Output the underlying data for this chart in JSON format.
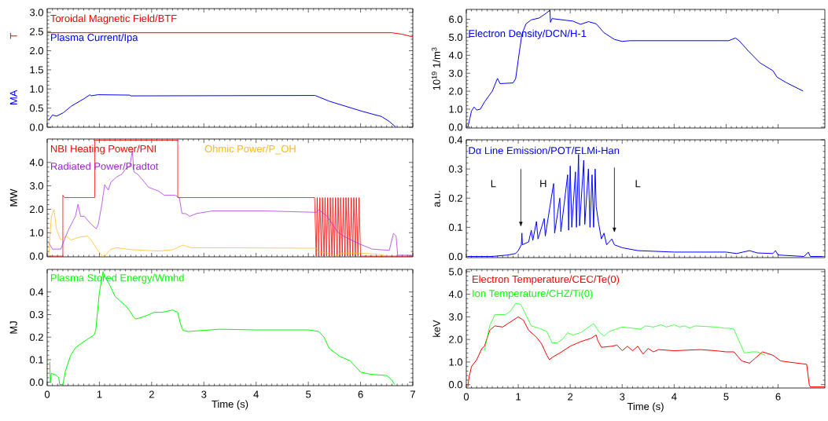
{
  "chart_data": [
    {
      "type": "line",
      "ylabel": "MA",
      "annotations": [
        "T"
      ],
      "xlim": [
        0,
        7
      ],
      "ylim": [
        0,
        3.1
      ],
      "tick_labels": "y",
      "xticks": [
        0,
        1,
        2,
        3,
        4,
        5,
        6,
        7
      ],
      "yticks": [
        {
          "value": 0,
          "label": "0.0"
        },
        {
          "value": 0.5,
          "label": "0.5"
        },
        {
          "value": 1,
          "label": "1.0"
        },
        {
          "value": 1.5,
          "label": "1.5"
        },
        {
          "value": 2,
          "label": "2.0"
        },
        {
          "value": 2.5,
          "label": "2.5"
        },
        {
          "value": 3,
          "label": "3.0"
        }
      ],
      "series": [
        {
          "name": "Toroidal Magnetic Field/BTF",
          "color": "#ff0000",
          "x": [
            0,
            1,
            2,
            3,
            4,
            5,
            6,
            6.6,
            6.8,
            7
          ],
          "values": [
            2.47,
            2.47,
            2.47,
            2.47,
            2.47,
            2.47,
            2.47,
            2.47,
            2.43,
            2.36
          ]
        },
        {
          "name": "Plasma Current/Ipa",
          "color": "#0000ff",
          "x": [
            0.03,
            0.1,
            0.18,
            0.31,
            0.46,
            0.71,
            0.82,
            0.84,
            0.97,
            1.58,
            1.6,
            5.13,
            5.4,
            5.71,
            6.02,
            6.4,
            6.55,
            6.67
          ],
          "values": [
            0.18,
            0.32,
            0.29,
            0.38,
            0.55,
            0.75,
            0.85,
            0.82,
            0.85,
            0.84,
            0.82,
            0.83,
            0.68,
            0.55,
            0.42,
            0.28,
            0.15,
            0.01
          ]
        }
      ]
    },
    {
      "type": "line",
      "ylabel": "10$^{19}$ 1/m$^{3}$",
      "xlim": [
        0,
        6.9
      ],
      "ylim": [
        -0.05,
        6.55
      ],
      "tick_labels": "y",
      "xticks": [
        0,
        1,
        2,
        3,
        4,
        5,
        6
      ],
      "yticks": [
        {
          "value": 0,
          "label": "0.0"
        },
        {
          "value": 1,
          "label": "1.0"
        },
        {
          "value": 2,
          "label": "2.0"
        },
        {
          "value": 3,
          "label": "3.0"
        },
        {
          "value": 4,
          "label": "4.0"
        },
        {
          "value": 5,
          "label": "5.0"
        },
        {
          "value": 6,
          "label": "6.0"
        }
      ],
      "series": [
        {
          "name": "Electron Density/DCN/H-1",
          "color": "#0000ff",
          "x": [
            0.03,
            0.07,
            0.1,
            0.15,
            0.2,
            0.27,
            0.35,
            0.5,
            0.6,
            0.65,
            0.9,
            0.95,
            1.02,
            1.07,
            1.15,
            1.25,
            1.4,
            1.5,
            1.61,
            1.62,
            1.65,
            2.05,
            2.2,
            2.35,
            2.5,
            2.65,
            2.85,
            3.0,
            3.15,
            5.05,
            5.18,
            5.25,
            5.43,
            5.65,
            5.9,
            5.98,
            6.15,
            6.48
          ],
          "values": [
            0,
            0.5,
            0.9,
            1.12,
            0.95,
            1.0,
            1.4,
            2.0,
            2.71,
            2.42,
            2.46,
            2.7,
            4.16,
            5.17,
            5.75,
            5.97,
            6.07,
            6.26,
            6.5,
            5.83,
            6.04,
            5.9,
            5.72,
            5.87,
            5.75,
            5.25,
            4.88,
            4.77,
            4.81,
            4.81,
            4.96,
            4.81,
            4.23,
            3.58,
            3.14,
            2.78,
            2.49,
            2.01
          ]
        }
      ]
    },
    {
      "type": "line",
      "ylabel": "MW",
      "xlim": [
        0,
        7
      ],
      "ylim": [
        -0.03,
        5
      ],
      "tick_labels": "y",
      "xticks": [
        0,
        1,
        2,
        3,
        4,
        5,
        6,
        7
      ],
      "yticks": [
        {
          "value": 0,
          "label": "0.0"
        },
        {
          "value": 1,
          "label": "1.0"
        },
        {
          "value": 2,
          "label": "2.0"
        },
        {
          "value": 3,
          "label": "3.0"
        },
        {
          "value": 4,
          "label": "4.0"
        }
      ],
      "series": [
        {
          "name": "NBI Heating Power/PNI",
          "color": "#ff0000",
          "x": [
            0.05,
            0.3,
            0.3,
            0.33,
            0.91,
            0.91,
            2.5,
            2.5,
            5.1,
            5.12,
            5.15,
            5.17,
            5.2,
            5.22,
            5.25,
            5.27,
            5.3,
            5.32,
            5.35,
            5.37,
            5.4,
            5.42,
            5.45,
            5.47,
            5.5,
            5.52,
            5.55,
            5.57,
            5.6,
            5.62,
            5.65,
            5.67,
            5.7,
            5.72,
            5.75,
            5.77,
            5.8,
            5.82,
            5.85,
            5.87,
            5.9,
            5.92,
            5.95,
            5.97,
            6.0,
            7
          ],
          "values": [
            0,
            0,
            2.6,
            2.5,
            2.5,
            4.95,
            4.95,
            2.5,
            2.5,
            2.5,
            0,
            2.5,
            0,
            2.5,
            0,
            2.5,
            0,
            2.5,
            0,
            2.5,
            0,
            2.5,
            0,
            2.5,
            0,
            2.5,
            0,
            2.5,
            0,
            2.5,
            0,
            2.5,
            0,
            2.5,
            0,
            2.5,
            0,
            2.5,
            0,
            2.5,
            0,
            2.5,
            0,
            2.5,
            0,
            0
          ]
        },
        {
          "name": "Radiated Power/Pradtot",
          "color": "#a020e0",
          "x": [
            0.03,
            0.1,
            0.26,
            0.41,
            0.54,
            0.59,
            0.64,
            0.71,
            0.84,
            0.94,
            0.98,
            1.05,
            1.1,
            1.17,
            1.22,
            1.33,
            1.43,
            1.5,
            1.58,
            1.63,
            1.66,
            1.73,
            1.84,
            1.94,
            2.14,
            2.24,
            2.45,
            2.53,
            2.58,
            2.65,
            2.73,
            2.86,
            3.16,
            4.18,
            5.15,
            5.2,
            5.36,
            5.56,
            5.71,
            5.97,
            6.22,
            6.55,
            6.63,
            6.68,
            6.71,
            7
          ],
          "values": [
            0.58,
            0.3,
            0.3,
            1.14,
            1.7,
            2.21,
            1.7,
            1.7,
            1.37,
            1.17,
            1.37,
            2.26,
            3.05,
            2.82,
            3.16,
            3.38,
            3.5,
            3.72,
            3.83,
            4.5,
            3.6,
            3.5,
            3.22,
            2.94,
            2.77,
            2.6,
            2.6,
            2.49,
            1.82,
            1.82,
            1.7,
            1.82,
            1.93,
            1.93,
            1.87,
            1.98,
            1.7,
            1.03,
            0.81,
            0.53,
            0.3,
            0.25,
            0.97,
            0.86,
            0.04,
            0.04
          ]
        },
        {
          "name": "Ohmic Power/P_OH",
          "color": "#ffb80f",
          "x": [
            0.03,
            0.08,
            0.13,
            0.18,
            0.26,
            0.36,
            0.46,
            0.61,
            0.77,
            0.84,
            0.97,
            1.05,
            1.1,
            1.22,
            1.33,
            1.63,
            2.14,
            2.4,
            2.6,
            2.76,
            5.15,
            5.2,
            5.36,
            5.51,
            5.66,
            6.02,
            6.33,
            6.53
          ],
          "values": [
            0.02,
            1.7,
            1.98,
            1.14,
            0.69,
            0.86,
            0.69,
            0.81,
            0.86,
            0.69,
            0.25,
            0,
            0,
            0.3,
            0.36,
            0.27,
            0.22,
            0.27,
            0.47,
            0.36,
            0.34,
            0.19,
            0.13,
            0.02,
            0.13,
            0.13,
            0.08,
            0
          ]
        }
      ]
    },
    {
      "type": "line",
      "ylabel": "a.u.",
      "xlim": [
        0,
        6.9
      ],
      "ylim": [
        -0.004,
        0.4
      ],
      "tick_labels": "y",
      "xticks": [
        0,
        1,
        2,
        3,
        4,
        5,
        6
      ],
      "yticks": [
        {
          "value": 0,
          "label": "0.0"
        },
        {
          "value": 0.1,
          "label": "0.1"
        },
        {
          "value": 0.2,
          "label": "0.2"
        },
        {
          "value": 0.3,
          "label": "0.3"
        },
        {
          "value": 0.4,
          "label": "0.4"
        }
      ],
      "annotations": [
        "L",
        "H",
        "L"
      ],
      "series": [
        {
          "name": "Dα Line Emission/POT/ELMi-Han",
          "color": "#0000ff",
          "x": [
            0.03,
            0.5,
            0.8,
            0.95,
            1.0,
            1.06,
            1.07,
            1.08,
            1.2,
            1.25,
            1.28,
            1.35,
            1.38,
            1.5,
            1.52,
            1.68,
            1.7,
            1.8,
            1.82,
            1.95,
            1.97,
            2.0,
            2.03,
            2.1,
            2.12,
            2.16,
            2.18,
            2.26,
            2.28,
            2.35,
            2.38,
            2.42,
            2.45,
            2.48,
            2.5,
            2.55,
            2.6,
            2.65,
            2.7,
            2.8,
            2.85,
            3.0,
            3.3,
            4.0,
            5.0,
            5.2,
            5.45,
            5.6,
            5.9,
            5.95,
            6.0,
            6.5,
            6.58,
            6.62,
            6.85
          ],
          "values": [
            0,
            0,
            0.005,
            0.01,
            0.02,
            0.04,
            0.08,
            0.04,
            0.05,
            0.09,
            0.055,
            0.12,
            0.06,
            0.13,
            0.07,
            0.25,
            0.08,
            0.2,
            0.085,
            0.28,
            0.09,
            0.31,
            0.1,
            0.29,
            0.1,
            0.35,
            0.105,
            0.33,
            0.11,
            0.3,
            0.1,
            0.28,
            0.1,
            0.3,
            0.17,
            0.11,
            0.06,
            0.08,
            0.04,
            0.06,
            0.04,
            0.03,
            0.02,
            0.015,
            0.015,
            0.01,
            0.02,
            0.012,
            0.01,
            0.02,
            0.005,
            0,
            0.015,
            0,
            0
          ]
        }
      ]
    },
    {
      "type": "line",
      "ylabel": "MJ",
      "xlabel": "Time (s)",
      "xlim": [
        0,
        7
      ],
      "ylim": [
        -0.015,
        0.5
      ],
      "xticks": [
        0,
        1,
        2,
        3,
        4,
        5,
        6,
        7
      ],
      "yticks": [
        {
          "value": 0,
          "label": "0.0"
        },
        {
          "value": 0.1,
          "label": "0.1"
        },
        {
          "value": 0.2,
          "label": "0.2"
        },
        {
          "value": 0.3,
          "label": "0.3"
        },
        {
          "value": 0.4,
          "label": "0.4"
        }
      ],
      "series": [
        {
          "name": "Plasma Stored Energy/Wmhd",
          "color": "#00ff00",
          "x": [
            0.05,
            0.06,
            0.08,
            0.18,
            0.22,
            0.24,
            0.3,
            0.35,
            0.45,
            0.55,
            0.7,
            0.9,
            0.93,
            1.0,
            1.07,
            1.1,
            1.2,
            1.3,
            1.4,
            1.5,
            1.6,
            1.65,
            1.7,
            1.9,
            2.05,
            2.2,
            2.4,
            2.5,
            2.55,
            2.6,
            2.7,
            3.0,
            3.3,
            4.0,
            5.0,
            5.2,
            5.3,
            5.4,
            5.6,
            5.8,
            5.9,
            6.0,
            6.2,
            6.5,
            6.6,
            6.65
          ],
          "values": [
            0.09,
            0,
            0.04,
            0.03,
            0.02,
            -0.01,
            -0.01,
            0.05,
            0.12,
            0.155,
            0.18,
            0.21,
            0.23,
            0.4,
            0.49,
            0.47,
            0.43,
            0.38,
            0.36,
            0.34,
            0.31,
            0.29,
            0.28,
            0.295,
            0.31,
            0.31,
            0.32,
            0.31,
            0.26,
            0.23,
            0.225,
            0.23,
            0.235,
            0.232,
            0.232,
            0.225,
            0.2,
            0.15,
            0.115,
            0.095,
            0.07,
            0.045,
            0.035,
            0.03,
            0.01,
            -0.01
          ]
        }
      ]
    },
    {
      "type": "line",
      "ylabel": "keV",
      "xlabel": "Time (s)",
      "xlim": [
        0,
        6.9
      ],
      "ylim": [
        -0.15,
        5.1
      ],
      "xticks": [
        0,
        1,
        2,
        3,
        4,
        5,
        6
      ],
      "yticks": [
        {
          "value": 0,
          "label": "0.0"
        },
        {
          "value": 1,
          "label": "1.0"
        },
        {
          "value": 2,
          "label": "2.0"
        },
        {
          "value": 3,
          "label": "3.0"
        },
        {
          "value": 4,
          "label": "4.0"
        },
        {
          "value": 5,
          "label": "5.0"
        }
      ],
      "series": [
        {
          "name": "Electron Temperature/CEC/Te(0)",
          "color": "#ff0000",
          "x": [
            0.03,
            0.05,
            0.1,
            0.2,
            0.3,
            0.35,
            0.45,
            0.55,
            0.7,
            0.8,
            1.0,
            1.1,
            1.2,
            1.35,
            1.45,
            1.55,
            1.6,
            1.65,
            1.8,
            2.0,
            2.2,
            2.4,
            2.5,
            2.53,
            2.6,
            2.8,
            2.9,
            3.0,
            3.1,
            3.2,
            3.3,
            3.4,
            3.5,
            3.6,
            3.7,
            4.0,
            4.5,
            4.8,
            5.0,
            5.15,
            5.3,
            5.45,
            5.55,
            5.7,
            5.9,
            6.05,
            6.2,
            6.55,
            6.6,
            6.62,
            6.9
          ],
          "values": [
            -0.1,
            0.3,
            0.8,
            1.1,
            1.6,
            1.7,
            2.4,
            2.6,
            2.55,
            2.7,
            3.0,
            2.85,
            2.4,
            2.1,
            1.8,
            1.3,
            1.1,
            1.2,
            1.4,
            1.7,
            1.9,
            2.05,
            2.2,
            1.95,
            1.65,
            1.7,
            1.75,
            1.5,
            1.7,
            1.5,
            1.7,
            1.35,
            1.6,
            1.45,
            1.55,
            1.5,
            1.55,
            1.5,
            1.45,
            1.45,
            1.05,
            0.95,
            1.15,
            1.45,
            1.3,
            1.05,
            1.0,
            0.9,
            0,
            -0.1,
            -0.1
          ]
        },
        {
          "name": "Ion Temperature/CHZ/Ti(0)",
          "color": "#00ff00",
          "x": [
            0.35,
            0.45,
            0.55,
            0.75,
            0.85,
            0.95,
            1.05,
            1.25,
            1.4,
            1.55,
            1.65,
            1.75,
            1.85,
            1.95,
            2.05,
            2.2,
            2.45,
            2.55,
            2.65,
            2.75,
            3.0,
            3.2,
            3.35,
            3.45,
            3.6,
            3.75,
            3.85,
            4.0,
            4.1,
            4.2,
            4.3,
            4.4,
            4.8,
            4.95,
            5.05,
            5.15,
            5.35,
            5.5,
            5.6,
            5.75
          ],
          "values": [
            1.5,
            2.6,
            3.1,
            3.1,
            3.25,
            3.6,
            3.55,
            2.6,
            2.5,
            2.35,
            1.85,
            1.85,
            2.0,
            2.3,
            2.2,
            2.3,
            2.7,
            2.35,
            2.15,
            2.35,
            2.55,
            2.5,
            2.45,
            2.6,
            2.55,
            2.65,
            2.55,
            2.65,
            2.55,
            2.6,
            2.5,
            2.6,
            2.55,
            2.5,
            2.5,
            2.45,
            1.4,
            1.45,
            1.45,
            1.3
          ]
        }
      ]
    }
  ]
}
